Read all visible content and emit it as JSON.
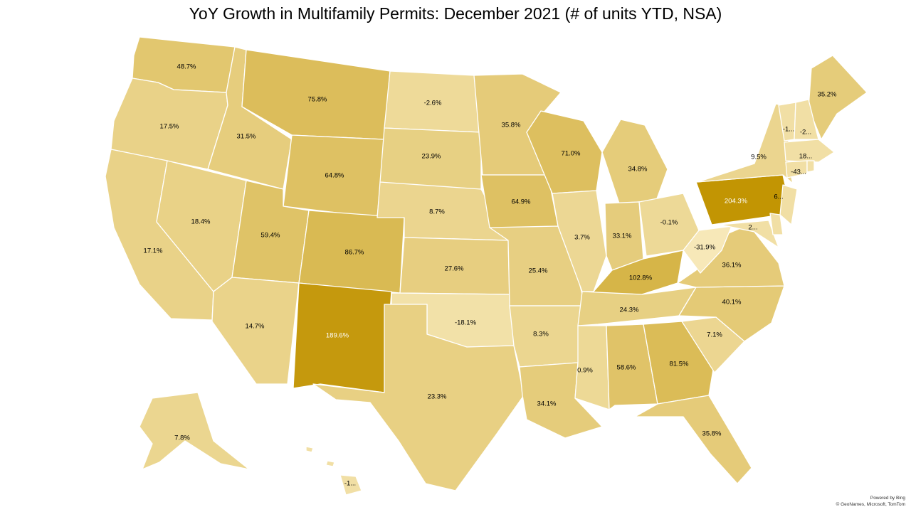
{
  "title": "YoY Growth in Multifamily Permits: December 2021 (# of units YTD, NSA)",
  "attribution": {
    "line1": "Powered by Bing",
    "line2": "© GeoNames, Microsoft, TomTom"
  },
  "chart_data": {
    "type": "choropleth",
    "metric": "YoY growth in multifamily permits, % (# of units YTD, NSA)",
    "period": "December 2021",
    "color_scale": {
      "low": "#f7e8b8",
      "high": "#c29503"
    },
    "states": [
      {
        "name": "WA",
        "label": "48.7%",
        "value": 48.7
      },
      {
        "name": "OR",
        "label": "17.5%",
        "value": 17.5
      },
      {
        "name": "CA",
        "label": "17.1%",
        "value": 17.1
      },
      {
        "name": "NV",
        "label": "18.4%",
        "value": 18.4
      },
      {
        "name": "ID",
        "label": "31.5%",
        "value": 31.5
      },
      {
        "name": "MT",
        "label": "75.8%",
        "value": 75.8
      },
      {
        "name": "WY",
        "label": "64.8%",
        "value": 64.8
      },
      {
        "name": "UT",
        "label": "59.4%",
        "value": 59.4
      },
      {
        "name": "AZ",
        "label": "14.7%",
        "value": 14.7
      },
      {
        "name": "CO",
        "label": "86.7%",
        "value": 86.7
      },
      {
        "name": "NM",
        "label": "189.6%",
        "value": 189.6
      },
      {
        "name": "ND",
        "label": "-2.6%",
        "value": -2.6
      },
      {
        "name": "SD",
        "label": "23.9%",
        "value": 23.9
      },
      {
        "name": "NE",
        "label": "8.7%",
        "value": 8.7
      },
      {
        "name": "KS",
        "label": "27.6%",
        "value": 27.6
      },
      {
        "name": "OK",
        "label": "-18.1%",
        "value": -18.1
      },
      {
        "name": "TX",
        "label": "23.3%",
        "value": 23.3
      },
      {
        "name": "MN",
        "label": "35.8%",
        "value": 35.8
      },
      {
        "name": "IA",
        "label": "64.9%",
        "value": 64.9
      },
      {
        "name": "MO",
        "label": "25.4%",
        "value": 25.4
      },
      {
        "name": "AR",
        "label": "8.3%",
        "value": 8.3
      },
      {
        "name": "LA",
        "label": "34.1%",
        "value": 34.1
      },
      {
        "name": "WI",
        "label": "71.0%",
        "value": 71.0
      },
      {
        "name": "IL",
        "label": "3.7%",
        "value": 3.7
      },
      {
        "name": "MI",
        "label": "34.8%",
        "value": 34.8
      },
      {
        "name": "IN",
        "label": "33.1%",
        "value": 33.1
      },
      {
        "name": "OH",
        "label": "-0.1%",
        "value": -0.1
      },
      {
        "name": "KY",
        "label": "102.8%",
        "value": 102.8
      },
      {
        "name": "TN",
        "label": "24.3%",
        "value": 24.3
      },
      {
        "name": "MS",
        "label": "0.9%",
        "value": 0.9
      },
      {
        "name": "AL",
        "label": "58.6%",
        "value": 58.6
      },
      {
        "name": "GA",
        "label": "81.5%",
        "value": 81.5
      },
      {
        "name": "FL",
        "label": "35.8%",
        "value": 35.8
      },
      {
        "name": "SC",
        "label": "7.1%",
        "value": 7.1
      },
      {
        "name": "NC",
        "label": "40.1%",
        "value": 40.1
      },
      {
        "name": "VA",
        "label": "36.1%",
        "value": 36.1
      },
      {
        "name": "WV",
        "label": "-31.9%",
        "value": -31.9
      },
      {
        "name": "PA",
        "label": "204.3%",
        "value": 204.3
      },
      {
        "name": "NY",
        "label": "9.5%",
        "value": 9.5
      },
      {
        "name": "ME",
        "label": "35.2%",
        "value": 35.2
      },
      {
        "name": "VT",
        "label": "-1...",
        "value": null
      },
      {
        "name": "NH",
        "label": "-2...",
        "value": null
      },
      {
        "name": "MA",
        "label": "18...",
        "value": null
      },
      {
        "name": "CT",
        "label": "-43...",
        "value": null
      },
      {
        "name": "NJ",
        "label": "6...",
        "value": null
      },
      {
        "name": "MD",
        "label": "2...",
        "value": null
      },
      {
        "name": "DE",
        "label": "",
        "value": null
      },
      {
        "name": "RI",
        "label": "",
        "value": null
      },
      {
        "name": "AK",
        "label": "7.8%",
        "value": 7.8
      },
      {
        "name": "HI",
        "label": "-1...",
        "value": null
      }
    ]
  }
}
